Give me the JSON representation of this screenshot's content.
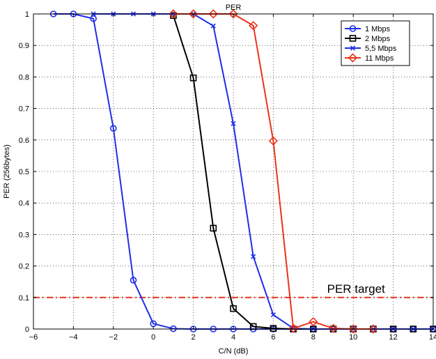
{
  "chart_data": {
    "type": "line",
    "title": "PER",
    "xlabel": "C/N (dB)",
    "ylabel": "PER (256bytes)",
    "xlim": [
      -6,
      14
    ],
    "ylim": [
      0,
      1
    ],
    "xticks": [
      -6,
      -4,
      -2,
      0,
      2,
      4,
      6,
      8,
      10,
      12,
      14
    ],
    "yticks": [
      0,
      0.1,
      0.2,
      0.3,
      0.4,
      0.5,
      0.6,
      0.7,
      0.8,
      0.9,
      1
    ],
    "grid": true,
    "legend_position": "top-right",
    "series": [
      {
        "name": "1 Mbps",
        "color": "#1f2ee6",
        "marker": "circle",
        "x": [
          -5,
          -4,
          -3,
          -2,
          -1,
          0,
          1,
          2,
          3,
          4,
          5,
          6,
          7,
          8,
          9,
          10,
          11,
          12,
          13,
          14
        ],
        "y": [
          1.0,
          1.0,
          0.985,
          0.637,
          0.155,
          0.017,
          0.001,
          0.0,
          0.0,
          0.0,
          0.0,
          0.0,
          0.0,
          0.0,
          0.0,
          0.0,
          0.0,
          0.0,
          0.0,
          0.0
        ]
      },
      {
        "name": "2 Mbps",
        "color": "#000000",
        "marker": "square",
        "x": [
          1,
          2,
          3,
          4,
          5,
          6,
          7,
          8,
          9,
          10,
          11,
          12,
          13,
          14
        ],
        "y": [
          0.995,
          0.797,
          0.32,
          0.065,
          0.008,
          0.002,
          0.0,
          0.0,
          0.0,
          0.0,
          0.0,
          0.0,
          0.0,
          0.0
        ]
      },
      {
        "name": "5,5 Mbps",
        "color": "#1f2ee6",
        "marker": "x",
        "x": [
          -3,
          -2,
          -1,
          0,
          1,
          2,
          3,
          4,
          5,
          6,
          7,
          8,
          9,
          10,
          11,
          12,
          13,
          14
        ],
        "y": [
          1.0,
          1.0,
          1.0,
          1.0,
          1.0,
          1.0,
          0.962,
          0.652,
          0.23,
          0.045,
          0.002,
          0.0,
          0.0,
          0.0,
          0.0,
          0.0,
          0.0,
          0.0
        ]
      },
      {
        "name": "11 Mbps",
        "color": "#e8341c",
        "marker": "diamond",
        "x": [
          1,
          2,
          3,
          4,
          5,
          6,
          7,
          8,
          9,
          10,
          11
        ],
        "y": [
          1.0,
          1.0,
          1.0,
          1.0,
          0.963,
          0.597,
          0.002,
          0.023,
          0.002,
          0.0,
          0.0
        ]
      }
    ],
    "reference_line": {
      "y": 0.1,
      "color": "#e8341c",
      "style": "dash-dot"
    },
    "annotation": {
      "text": "PER target",
      "color": "#e8341c",
      "x": 10,
      "y": 0.1
    }
  }
}
